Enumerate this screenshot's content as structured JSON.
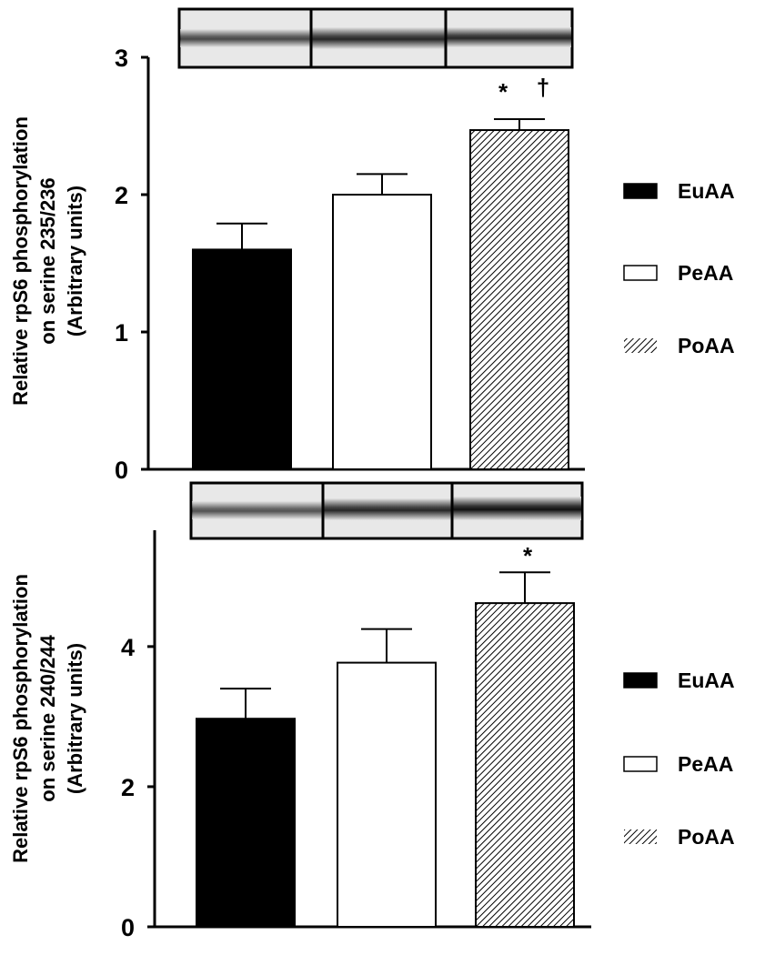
{
  "chart_data": [
    {
      "type": "bar",
      "ylabel": [
        "Relative rpS6 phosphorylation",
        "on serine 235/236",
        "(Arbitrary units)"
      ],
      "categories": [
        null
      ],
      "ylim": [
        0,
        3
      ],
      "yticks": [
        0,
        1,
        2,
        3
      ],
      "annotations": [
        "*",
        "†"
      ],
      "series": [
        {
          "name": "EuAA",
          "color": "#000000",
          "values": [
            1.6
          ],
          "errors": [
            0.19
          ]
        },
        {
          "name": "PeAA",
          "color": "#ffffff",
          "values": [
            2.0
          ],
          "errors": [
            0.15
          ]
        },
        {
          "name": "PoAA",
          "color": "#000000",
          "pattern": "diagonal",
          "values": [
            2.47
          ],
          "errors": [
            0.08
          ]
        }
      ]
    },
    {
      "type": "bar",
      "ylabel": [
        "Relative rpS6 phosphorylation",
        "on serine 240/244",
        "(Arbitrary units)"
      ],
      "categories": [
        null
      ],
      "ylim": [
        0,
        5.66
      ],
      "yticks": [
        0,
        2,
        4
      ],
      "annotations": [
        "*"
      ],
      "series": [
        {
          "name": "EuAA",
          "color": "#000000",
          "values": [
            2.97
          ],
          "errors": [
            0.43
          ]
        },
        {
          "name": "PeAA",
          "color": "#ffffff",
          "values": [
            3.77
          ],
          "errors": [
            0.48
          ]
        },
        {
          "name": "PoAA",
          "color": "#000000",
          "pattern": "diagonal",
          "values": [
            4.62
          ],
          "errors": [
            0.44
          ]
        }
      ]
    }
  ]
}
